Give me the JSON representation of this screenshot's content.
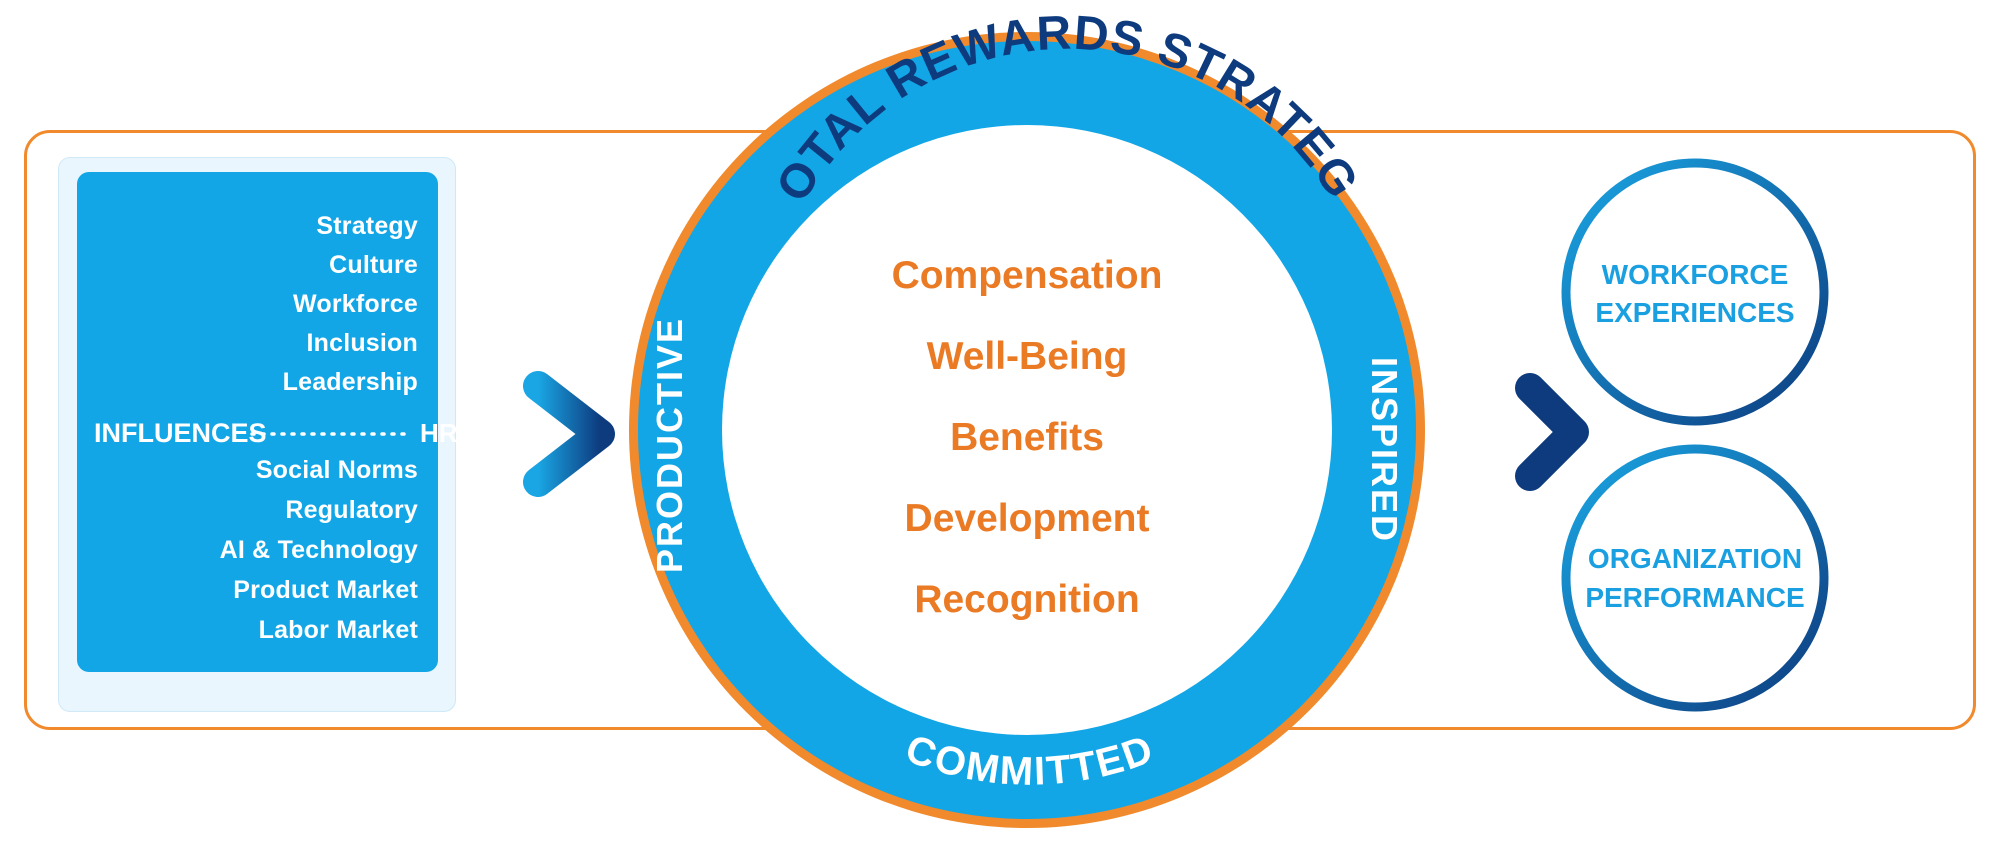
{
  "influence_factors": {
    "upper": [
      "Strategy",
      "Culture",
      "Workforce",
      "Inclusion",
      "Leadership"
    ],
    "lower": [
      "Social Norms",
      "Regulatory",
      "AI & Technology",
      "Product Market",
      "Labor Market"
    ]
  },
  "connector": {
    "left_label": "INFLUENCES",
    "right_label": "HR STRATEGY"
  },
  "ring": {
    "top_label": "TOTAL REWARDS STRATEGY",
    "left_label": "PRODUCTIVE",
    "right_label": "INSPIRED",
    "bottom_label": "COMMITTED"
  },
  "rewards_elements": [
    "Compensation",
    "Well-Being",
    "Benefits",
    "Development",
    "Recognition"
  ],
  "outcomes": [
    {
      "line1": "WORKFORCE",
      "line2": "EXPERIENCES"
    },
    {
      "line1": "ORGANIZATION",
      "line2": "PERFORMANCE"
    }
  ],
  "colors": {
    "brand_blue": "#12a6e6",
    "dark_navy": "#0d3b7e",
    "accent_orange": "#f08a2c",
    "element_orange": "#ea7a24"
  }
}
